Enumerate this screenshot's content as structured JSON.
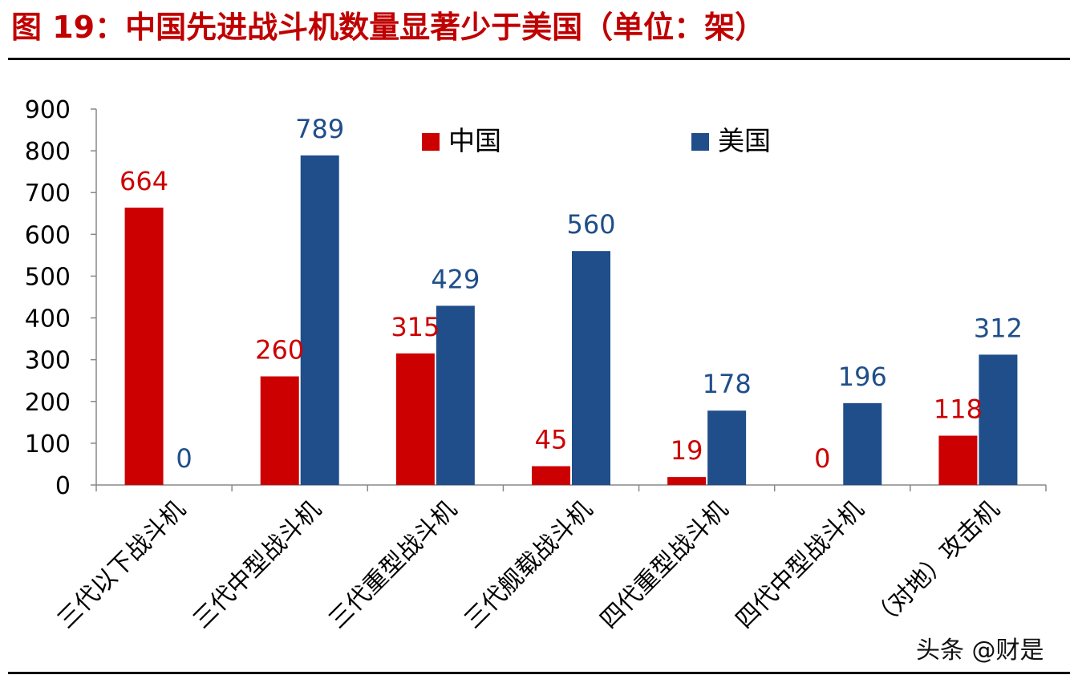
{
  "title": "图 19：中国先进战斗机数量显著少于美国（单位：架）",
  "watermark": "头条 @财是",
  "colors": {
    "china": "#cc0000",
    "usa": "#1f4e8a",
    "title": "#c00000"
  },
  "chart_data": {
    "type": "bar",
    "categories": [
      "三代以下战斗机",
      "三代中型战斗机",
      "三代重型战斗机",
      "三代舰载战斗机",
      "四代重型战斗机",
      "四代中型战斗机",
      "（对地）攻击机"
    ],
    "series": [
      {
        "name": "中国",
        "values": [
          664,
          260,
          315,
          45,
          19,
          0,
          118
        ]
      },
      {
        "name": "美国",
        "values": [
          0,
          789,
          429,
          560,
          178,
          196,
          312
        ]
      }
    ],
    "yticks": [
      "0",
      "100",
      "200",
      "300",
      "400",
      "500",
      "600",
      "700",
      "800",
      "900"
    ],
    "ylim": [
      0,
      900
    ],
    "grid": false,
    "data_labels": true,
    "legend_position": "top"
  }
}
